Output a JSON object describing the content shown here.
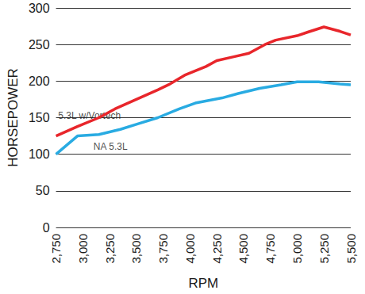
{
  "chart_data": {
    "type": "line",
    "x_label": "RPM",
    "y_label": "HORSEPOWER",
    "xlim": [
      2750,
      5500
    ],
    "xticks": [
      2750,
      3000,
      3250,
      3500,
      3750,
      4000,
      4250,
      4500,
      4750,
      5000,
      5250,
      5500
    ],
    "ylim": [
      0,
      300
    ],
    "yticks": [
      0,
      50,
      100,
      150,
      200,
      250,
      300
    ],
    "grid": true,
    "series": [
      {
        "name": "5.3L w/Vortech",
        "color": "#e8262b",
        "x": [
          2750,
          2950,
          3150,
          3300,
          3500,
          3700,
          3800,
          3950,
          4150,
          4250,
          4400,
          4550,
          4700,
          4800,
          5000,
          5100,
          5250,
          5400,
          5500
        ],
        "values": [
          125,
          138,
          150,
          162,
          175,
          188,
          195,
          208,
          220,
          228,
          233,
          238,
          250,
          256,
          262,
          267,
          274,
          268,
          263
        ]
      },
      {
        "name": "NA 5.3L",
        "color": "#29abe2",
        "x": [
          2750,
          2950,
          3150,
          3350,
          3500,
          3700,
          3900,
          4050,
          4300,
          4450,
          4650,
          4850,
          5000,
          5200,
          5400,
          5500
        ],
        "values": [
          100,
          125,
          127,
          134,
          141,
          150,
          162,
          170,
          177,
          183,
          190,
          195,
          199,
          199,
          196,
          195
        ]
      }
    ],
    "annotations": [
      {
        "text": "5.3L w/Vortech",
        "x": 2770,
        "y": 153
      },
      {
        "text": "NA 5.3L",
        "x": 3100,
        "y": 110
      }
    ]
  }
}
